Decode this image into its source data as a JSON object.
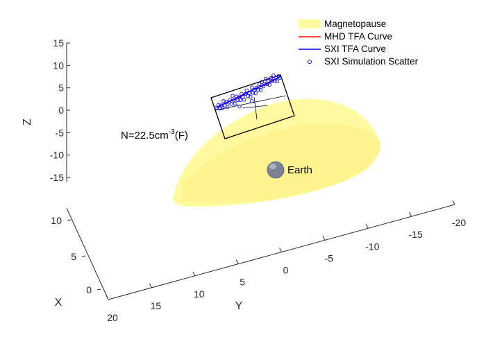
{
  "chart_data": {
    "type": "scatter",
    "plot_kind": "3d",
    "title": "",
    "annotation": {
      "base": "N=22.5cm",
      "sup": "-3",
      "suffix": "(F)"
    },
    "axes": {
      "x": {
        "label": "X",
        "ticks": [
          "0",
          "5",
          "10"
        ]
      },
      "y": {
        "label": "Y",
        "ticks": [
          "20",
          "15",
          "10",
          "5",
          "0",
          "-5",
          "-10",
          "-15",
          "-20"
        ]
      },
      "z": {
        "label": "Z",
        "ticks": [
          "15",
          "10",
          "5",
          "0",
          "-5",
          "-10",
          "-15"
        ]
      }
    },
    "grid": false,
    "legend": {
      "placement": "top-right",
      "entries": [
        {
          "name": "Magnetopause",
          "kind": "patch",
          "color": "#FFFAA0"
        },
        {
          "name": "MHD TFA Curve",
          "kind": "line",
          "color": "#FF0000"
        },
        {
          "name": "SXI TFA Curve",
          "kind": "line",
          "color": "#0000FF"
        },
        {
          "name": "SXI Simulation Scatter",
          "kind": "marker",
          "color": "#0000FF"
        }
      ]
    },
    "labels": {
      "earth": "Earth"
    },
    "series": [
      {
        "name": "SXI Simulation Scatter",
        "points": [
          [
            0.0,
            0.3
          ],
          [
            0.03,
            0.4
          ],
          [
            0.05,
            0.22
          ],
          [
            0.07,
            0.34
          ],
          [
            0.09,
            0.2
          ],
          [
            0.11,
            0.5
          ],
          [
            0.13,
            0.28
          ],
          [
            0.15,
            0.42
          ],
          [
            0.17,
            0.18
          ],
          [
            0.19,
            0.36
          ],
          [
            0.21,
            0.46
          ],
          [
            0.23,
            0.26
          ],
          [
            0.25,
            0.6
          ],
          [
            0.27,
            0.38
          ],
          [
            0.29,
            0.22
          ],
          [
            0.31,
            0.52
          ],
          [
            0.33,
            0.34
          ],
          [
            0.35,
            0.44
          ],
          [
            0.37,
            0.3
          ],
          [
            0.39,
            0.56
          ],
          [
            0.41,
            0.4
          ],
          [
            0.43,
            0.26
          ],
          [
            0.45,
            0.5
          ],
          [
            0.47,
            0.64
          ],
          [
            0.49,
            0.36
          ],
          [
            0.51,
            0.48
          ],
          [
            0.53,
            0.3
          ],
          [
            0.55,
            0.7
          ],
          [
            0.57,
            0.44
          ],
          [
            0.59,
            0.56
          ],
          [
            0.61,
            0.38
          ],
          [
            0.63,
            0.62
          ],
          [
            0.65,
            0.5
          ],
          [
            0.67,
            0.74
          ],
          [
            0.69,
            0.46
          ],
          [
            0.71,
            0.8
          ],
          [
            0.73,
            0.58
          ],
          [
            0.75,
            0.68
          ],
          [
            0.77,
            0.88
          ],
          [
            0.79,
            0.62
          ],
          [
            0.81,
            0.74
          ],
          [
            0.83,
            0.56
          ],
          [
            0.85,
            0.84
          ],
          [
            0.87,
            0.7
          ],
          [
            0.89,
            0.92
          ],
          [
            0.91,
            0.66
          ],
          [
            0.93,
            0.78
          ],
          [
            0.95,
            0.6
          ],
          [
            0.97,
            0.82
          ],
          [
            0.99,
            0.72
          ],
          [
            0.55,
            0.08
          ],
          [
            0.36,
            0.02
          ]
        ]
      }
    ]
  }
}
